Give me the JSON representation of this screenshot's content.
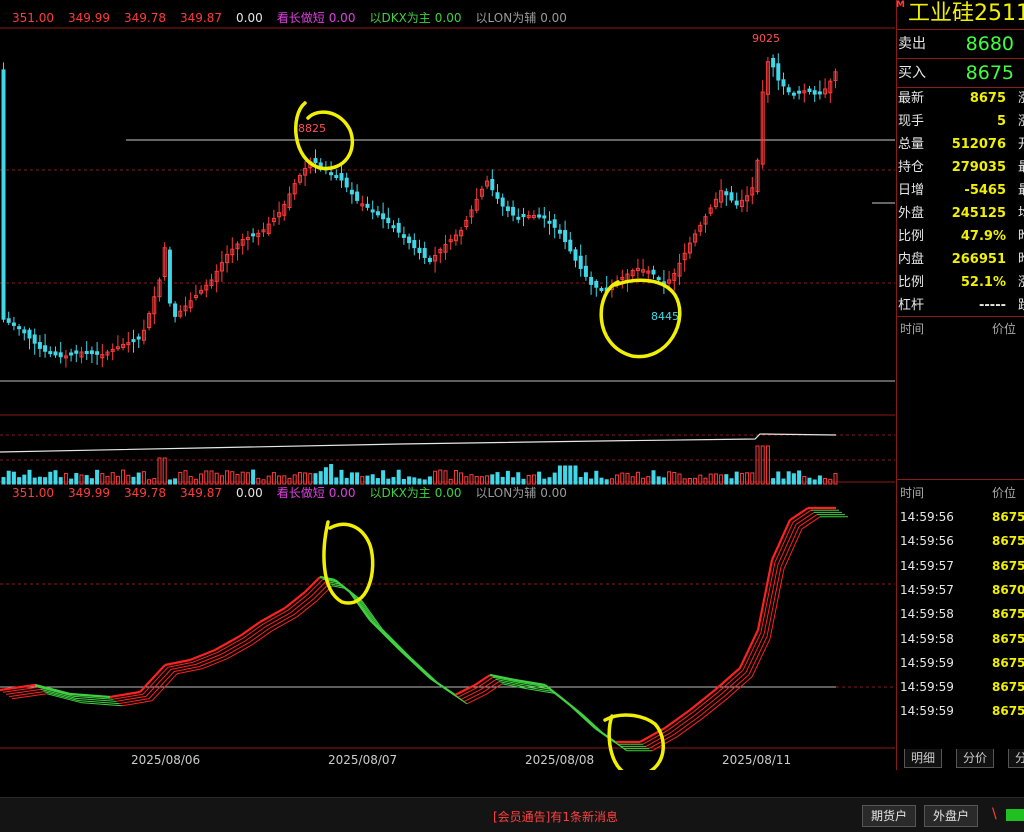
{
  "indicator_bar": [
    "351.00",
    "349.99",
    "349.78",
    "349.87",
    "0.00",
    "看长做短",
    "0.00",
    "以DKX为主",
    "0.00",
    "以LON为辅",
    "0.00"
  ],
  "price_labels": {
    "high_left": "8825",
    "high_right": "9025",
    "low": "8445"
  },
  "quote": {
    "title": "工业硅2511",
    "market_marker": "M",
    "sell": {
      "label": "卖出",
      "value": "8680"
    },
    "buy": {
      "label": "买入",
      "value": "8675"
    },
    "rows": [
      {
        "label": "最新",
        "value": "8675",
        "ext": "涨"
      },
      {
        "label": "现手",
        "value": "5",
        "ext": "涨"
      },
      {
        "label": "总量",
        "value": "512076",
        "ext": "开"
      },
      {
        "label": "持仓",
        "value": "279035",
        "ext": "最"
      },
      {
        "label": "日增",
        "value": "-5465",
        "ext": "最"
      },
      {
        "label": "外盘",
        "value": "245125",
        "ext": "均"
      },
      {
        "label": "比例",
        "value": "47.9%",
        "ext": "昨"
      },
      {
        "label": "内盘",
        "value": "266951",
        "ext": "昨"
      },
      {
        "label": "比例",
        "value": "52.1%",
        "ext": "涨"
      },
      {
        "label": "杠杆",
        "value": "-----",
        "ext": "跌"
      }
    ],
    "detail_header_1": {
      "time": "时间",
      "price": "价位"
    },
    "detail_header_2": {
      "time": "时间",
      "price": "价位"
    },
    "ticks": [
      {
        "time": "14:59:56",
        "price": "8675"
      },
      {
        "time": "14:59:56",
        "price": "8675"
      },
      {
        "time": "14:59:57",
        "price": "8675"
      },
      {
        "time": "14:59:57",
        "price": "8670"
      },
      {
        "time": "14:59:58",
        "price": "8675"
      },
      {
        "time": "14:59:58",
        "price": "8675"
      },
      {
        "time": "14:59:59",
        "price": "8675"
      },
      {
        "time": "14:59:59",
        "price": "8675"
      },
      {
        "time": "14:59:59",
        "price": "8675"
      }
    ],
    "tabs": [
      "明细",
      "分价",
      "分"
    ]
  },
  "dates": [
    "2025/08/06",
    "2025/08/07",
    "2025/08/08",
    "2025/08/11"
  ],
  "bottom": {
    "message": "[会员通告]有1条新消息",
    "btn_futures": "期货户",
    "btn_foreign": "外盘户"
  },
  "colors": {
    "up": "#ff3c3c",
    "down": "#40d8e8",
    "panel_border": "#8b1a1a",
    "highlight": "#f0f000",
    "dkx_down": "#40d040"
  },
  "chart_data": {
    "type": "candlestick",
    "marked_high": 8825,
    "marked_peak": 9025,
    "marked_low": 8445,
    "last_price": 8675,
    "date_axis": [
      "2025/08/06",
      "2025/08/07",
      "2025/08/08",
      "2025/08/11"
    ]
  }
}
